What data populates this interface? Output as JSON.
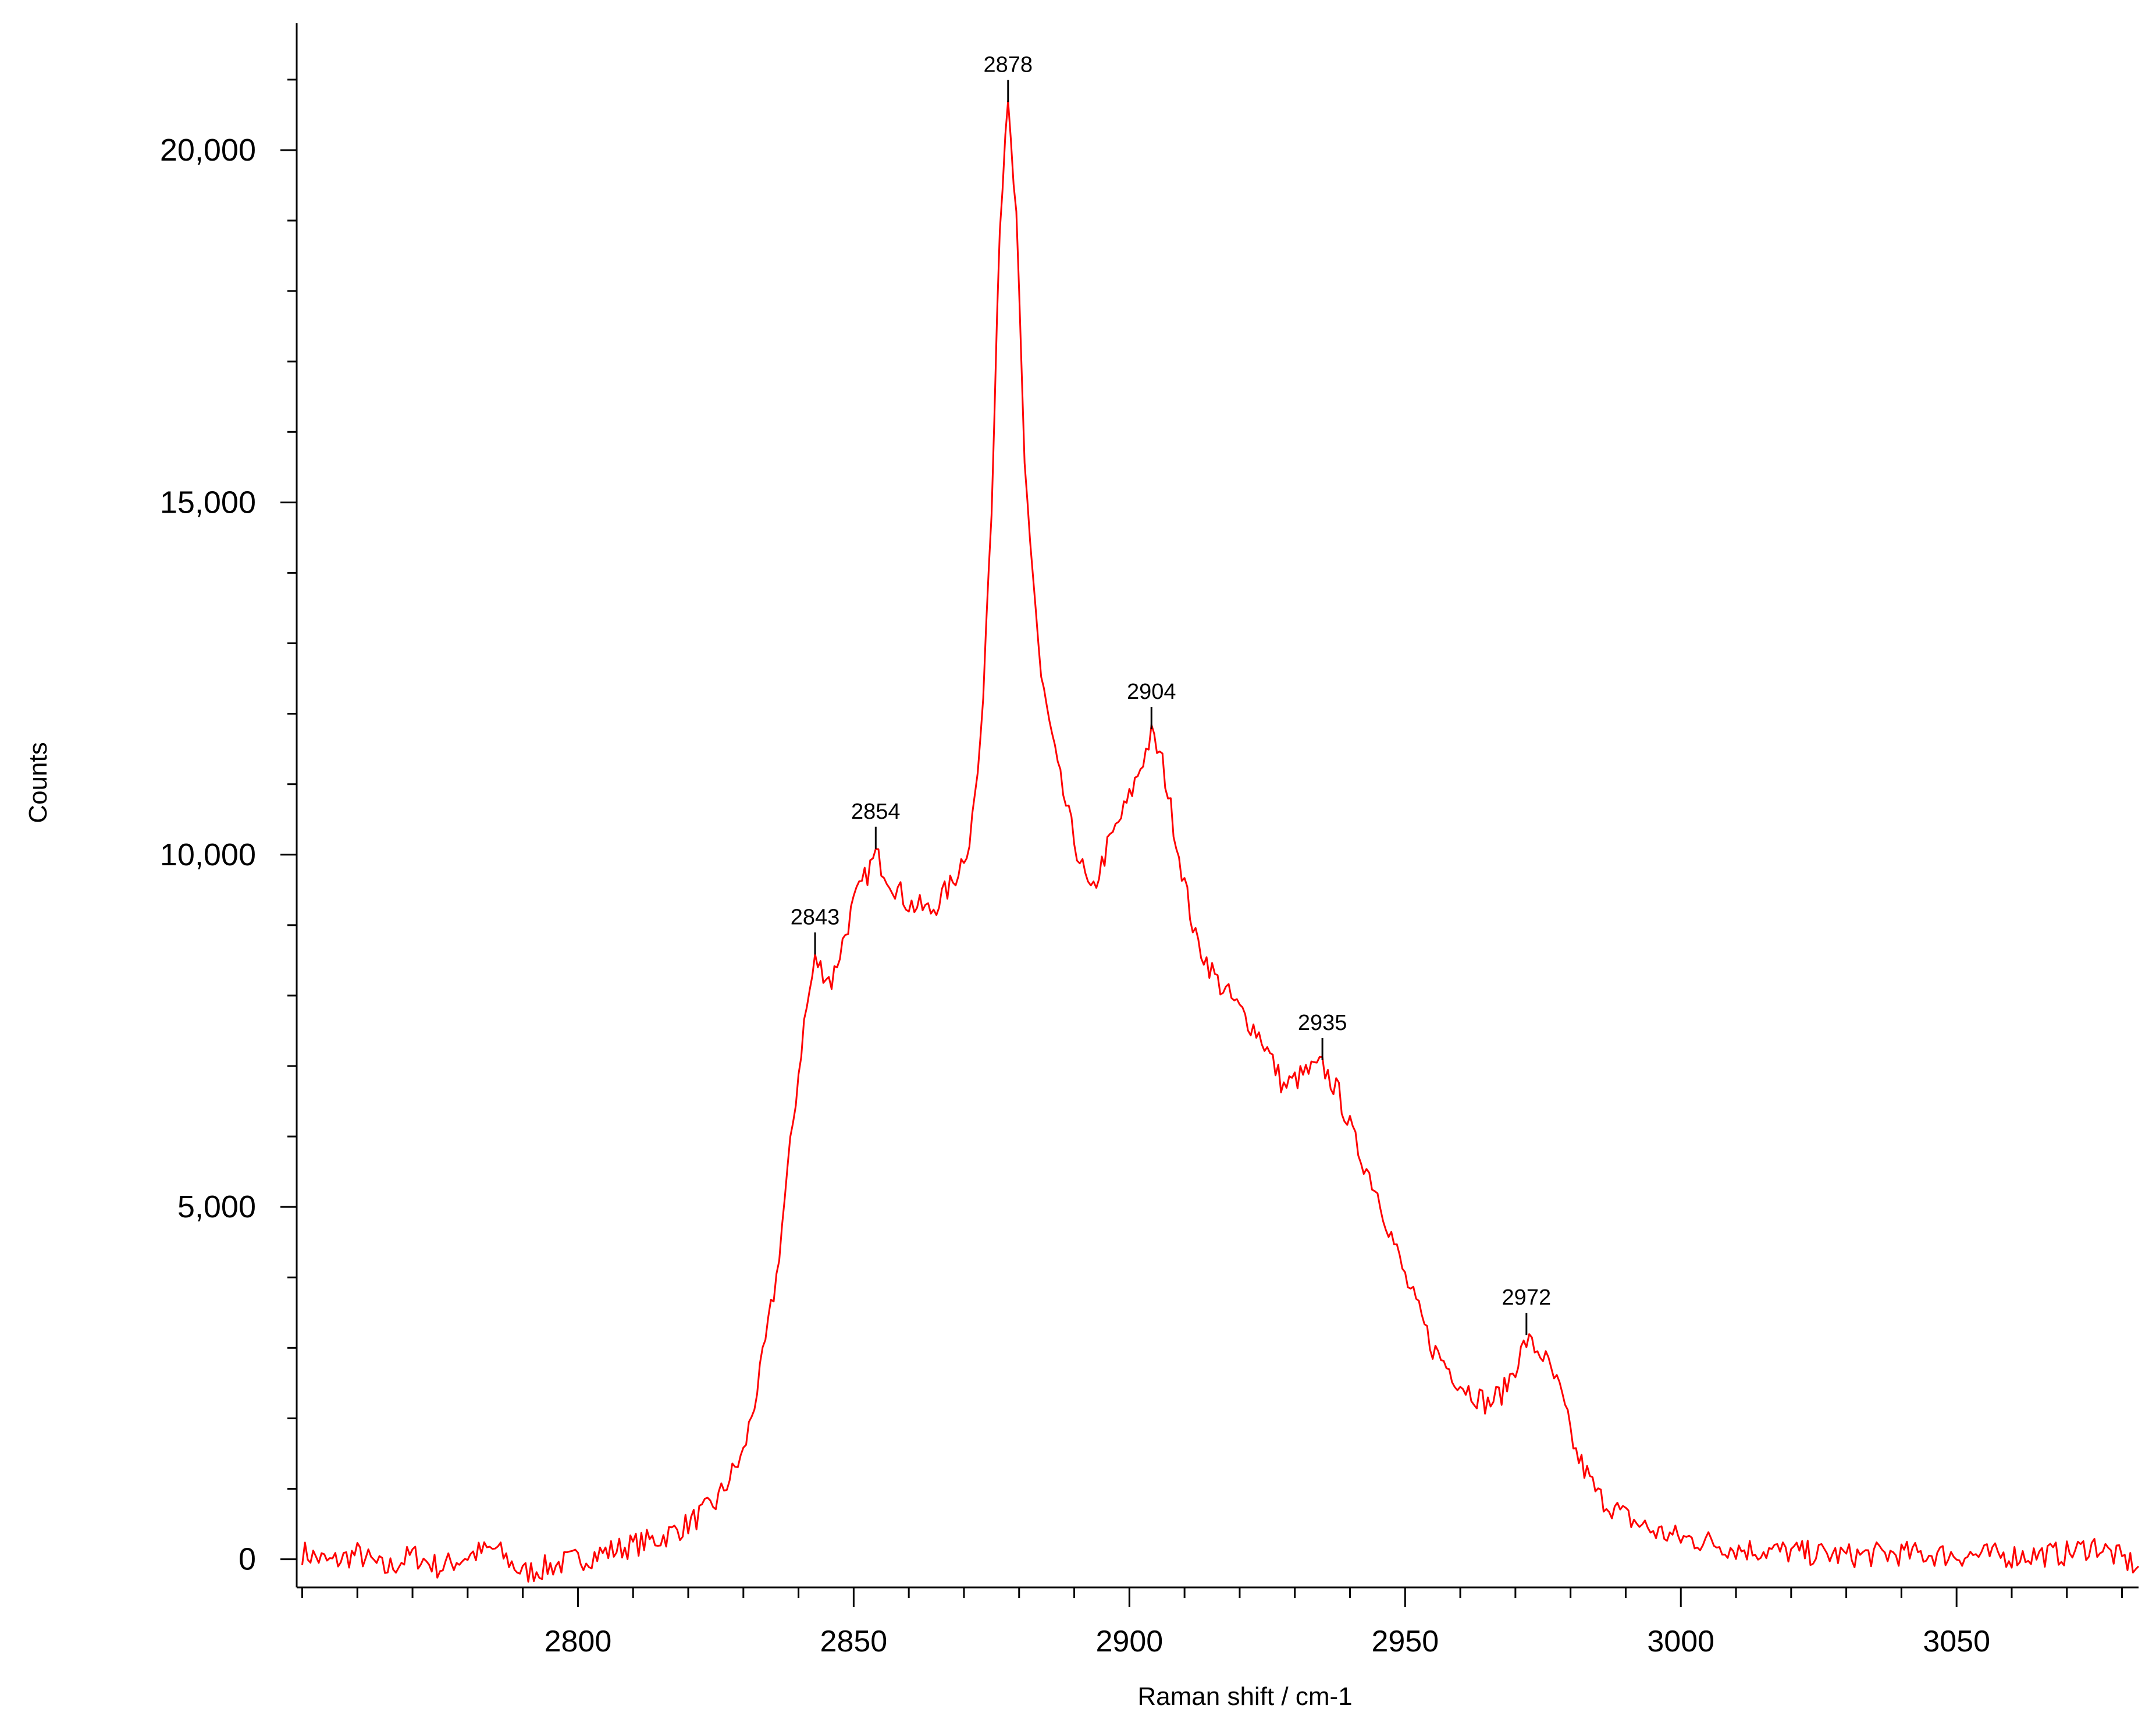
{
  "chart_data": {
    "type": "line",
    "xlabel": "Raman shift / cm-1",
    "ylabel": "Counts",
    "xlim": [
      2749,
      3083
    ],
    "ylim": [
      -400,
      21800
    ],
    "x_ticks": [
      2800,
      2850,
      2900,
      2950,
      3000,
      3050
    ],
    "x_tick_labels": [
      "2800",
      "2850",
      "2900",
      "2950",
      "3000",
      "3050"
    ],
    "y_ticks": [
      0,
      5000,
      10000,
      15000,
      20000
    ],
    "y_tick_labels": [
      "0",
      "5,000",
      "10,000",
      "15,000",
      "20,000"
    ],
    "y_minor_step": 1000,
    "x_minor_step": 10,
    "grid": false,
    "line_color": "#ff0000",
    "series": [
      {
        "points": [
          [
            2750,
            100
          ],
          [
            2755,
            -50
          ],
          [
            2760,
            80
          ],
          [
            2765,
            -150
          ],
          [
            2770,
            60
          ],
          [
            2775,
            -120
          ],
          [
            2780,
            50
          ],
          [
            2785,
            150
          ],
          [
            2790,
            -200
          ],
          [
            2795,
            -100
          ],
          [
            2800,
            0
          ],
          [
            2805,
            100
          ],
          [
            2810,
            200
          ],
          [
            2815,
            300
          ],
          [
            2820,
            500
          ],
          [
            2825,
            800
          ],
          [
            2830,
            1500
          ],
          [
            2833,
            2600
          ],
          [
            2836,
            4000
          ],
          [
            2839,
            6200
          ],
          [
            2841,
            7600
          ],
          [
            2843,
            8500
          ],
          [
            2846,
            8200
          ],
          [
            2850,
            9300
          ],
          [
            2854,
            10000
          ],
          [
            2857,
            9600
          ],
          [
            2860,
            9300
          ],
          [
            2864,
            9200
          ],
          [
            2868,
            9600
          ],
          [
            2871,
            10200
          ],
          [
            2873,
            11500
          ],
          [
            2875,
            15000
          ],
          [
            2876.5,
            19000
          ],
          [
            2878,
            20600
          ],
          [
            2879.5,
            19000
          ],
          [
            2881,
            15500
          ],
          [
            2884,
            12500
          ],
          [
            2887,
            11200
          ],
          [
            2890,
            10200
          ],
          [
            2893,
            9400
          ],
          [
            2896,
            10100
          ],
          [
            2900,
            10800
          ],
          [
            2904,
            11700
          ],
          [
            2906,
            11300
          ],
          [
            2909,
            10000
          ],
          [
            2912,
            8800
          ],
          [
            2916,
            8200
          ],
          [
            2920,
            7800
          ],
          [
            2924,
            7400
          ],
          [
            2928,
            6700
          ],
          [
            2932,
            6900
          ],
          [
            2935,
            7000
          ],
          [
            2938,
            6600
          ],
          [
            2941,
            5900
          ],
          [
            2945,
            5200
          ],
          [
            2950,
            4000
          ],
          [
            2955,
            3000
          ],
          [
            2960,
            2500
          ],
          [
            2965,
            2200
          ],
          [
            2968,
            2400
          ],
          [
            2972,
            3100
          ],
          [
            2975,
            2900
          ],
          [
            2978,
            2400
          ],
          [
            2981,
            1500
          ],
          [
            2985,
            900
          ],
          [
            2990,
            600
          ],
          [
            2995,
            400
          ],
          [
            3000,
            300
          ],
          [
            3005,
            250
          ],
          [
            3010,
            150
          ],
          [
            3020,
            100
          ],
          [
            3030,
            50
          ],
          [
            3040,
            80
          ],
          [
            3050,
            60
          ],
          [
            3060,
            50
          ],
          [
            3070,
            80
          ],
          [
            3075,
            200
          ],
          [
            3080,
            0
          ],
          [
            3083,
            -100
          ]
        ]
      }
    ],
    "peaks": [
      {
        "x": 2843,
        "y": 8500,
        "label": "2843"
      },
      {
        "x": 2854,
        "y": 10000,
        "label": "2854"
      },
      {
        "x": 2878,
        "y": 20600,
        "label": "2878"
      },
      {
        "x": 2904,
        "y": 11700,
        "label": "2904"
      },
      {
        "x": 2935,
        "y": 7000,
        "label": "2935"
      },
      {
        "x": 2972,
        "y": 3100,
        "label": "2972"
      }
    ]
  }
}
